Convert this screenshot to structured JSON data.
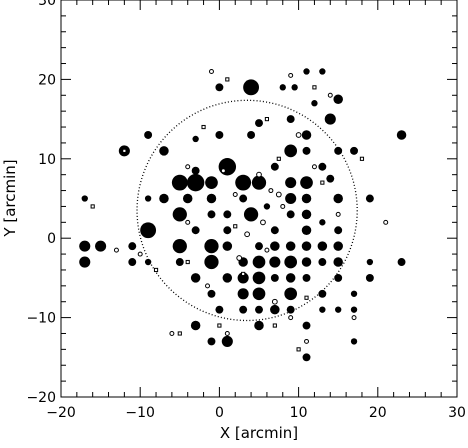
{
  "chart_data": {
    "type": "scatter",
    "title": "",
    "xlabel": "X [arcmin]",
    "ylabel": "Y [arcmin]",
    "xlim": [
      -20,
      30
    ],
    "ylim": [
      -20,
      30
    ],
    "xticks": [
      -20,
      -10,
      0,
      10,
      20,
      30
    ],
    "yticks": [
      -20,
      -10,
      0,
      10,
      20,
      30
    ],
    "grid": false,
    "legend": "none",
    "colors": {
      "background": "#ffffff",
      "axes": "#000000",
      "marker": "#000000"
    },
    "overlays": [
      {
        "type": "circle",
        "style": "dotted",
        "center": [
          3.5,
          3.5
        ],
        "radius": 13.9
      }
    ],
    "series": [
      {
        "marker": "filled-circle",
        "points": [
          [
            4,
            19,
            1.0
          ],
          [
            0,
            19,
            0.5
          ],
          [
            8,
            19,
            0.4
          ],
          [
            9.5,
            19,
            0.4
          ],
          [
            11,
            21,
            0.4
          ],
          [
            13,
            21,
            0.4
          ],
          [
            15,
            17.5,
            0.6
          ],
          [
            12,
            17,
            0.4
          ],
          [
            9,
            15,
            0.5
          ],
          [
            14,
            15,
            0.7
          ],
          [
            5,
            14.5,
            0.5
          ],
          [
            0,
            13,
            0.5
          ],
          [
            4,
            13,
            0.5
          ],
          [
            11,
            13,
            0.6
          ],
          [
            -3,
            12.5,
            0.4
          ],
          [
            -9,
            13,
            0.5
          ],
          [
            23,
            13,
            0.6
          ],
          [
            -12,
            11,
            0.7
          ],
          [
            -7,
            11,
            0.6
          ],
          [
            9,
            11,
            0.8
          ],
          [
            11,
            11,
            0.5
          ],
          [
            15,
            11,
            0.5
          ],
          [
            17,
            11,
            0.5
          ],
          [
            1,
            9,
            1.1
          ],
          [
            -3,
            8.5,
            0.5
          ],
          [
            7,
            9,
            0.5
          ],
          [
            13,
            9,
            0.5
          ],
          [
            -5,
            7,
            1.0
          ],
          [
            -3,
            7,
            1.1
          ],
          [
            -1,
            7,
            0.8
          ],
          [
            3,
            7,
            1.0
          ],
          [
            5,
            7,
            0.9
          ],
          [
            9,
            7,
            0.7
          ],
          [
            11,
            7,
            0.8
          ],
          [
            14,
            7.5,
            0.5
          ],
          [
            -9,
            5,
            0.4
          ],
          [
            -7,
            5,
            0.6
          ],
          [
            -4,
            5,
            0.6
          ],
          [
            -1,
            5,
            0.6
          ],
          [
            3,
            5,
            0.5
          ],
          [
            9,
            5,
            0.7
          ],
          [
            11,
            5,
            0.6
          ],
          [
            15,
            5,
            0.6
          ],
          [
            19,
            5,
            0.5
          ],
          [
            -5,
            3,
            0.9
          ],
          [
            -1,
            3,
            0.5
          ],
          [
            4,
            3,
            0.9
          ],
          [
            9,
            3,
            0.5
          ],
          [
            11,
            3,
            0.6
          ],
          [
            13,
            2,
            0.4
          ],
          [
            -3,
            1,
            0.5
          ],
          [
            1,
            1,
            0.5
          ],
          [
            7,
            1,
            0.5
          ],
          [
            11,
            1,
            0.6
          ],
          [
            15,
            1,
            0.5
          ],
          [
            -9,
            1,
            1.0
          ],
          [
            -5,
            -1,
            0.9
          ],
          [
            -1,
            -1,
            0.9
          ],
          [
            1,
            -1,
            0.6
          ],
          [
            5,
            -1,
            0.5
          ],
          [
            7,
            -1,
            0.6
          ],
          [
            9,
            -1,
            0.6
          ],
          [
            11,
            -1,
            0.6
          ],
          [
            13,
            -1,
            0.6
          ],
          [
            15,
            -1,
            0.6
          ],
          [
            -17,
            -1,
            0.7
          ],
          [
            -15,
            -1,
            0.7
          ],
          [
            -11,
            -1,
            0.5
          ],
          [
            -17,
            -3,
            0.7
          ],
          [
            -11,
            -3,
            0.5
          ],
          [
            -9,
            -3,
            0.4
          ],
          [
            -5,
            -3,
            0.5
          ],
          [
            -1,
            -3,
            0.9
          ],
          [
            3,
            -3,
            0.6
          ],
          [
            5,
            -3,
            0.8
          ],
          [
            7,
            -3,
            0.7
          ],
          [
            9,
            -3,
            0.8
          ],
          [
            11,
            -3,
            0.6
          ],
          [
            13,
            -3,
            0.5
          ],
          [
            15,
            -3,
            0.6
          ],
          [
            19,
            -3,
            0.4
          ],
          [
            -3,
            -5,
            0.6
          ],
          [
            1,
            -5,
            0.6
          ],
          [
            3,
            -5,
            0.7
          ],
          [
            5,
            -5,
            0.8
          ],
          [
            7,
            -5,
            0.5
          ],
          [
            9,
            -5,
            0.6
          ],
          [
            11,
            -5,
            0.5
          ],
          [
            15,
            -5,
            0.5
          ],
          [
            19,
            -5,
            0.5
          ],
          [
            -1,
            -7,
            0.5
          ],
          [
            3,
            -7,
            0.7
          ],
          [
            5,
            -7,
            0.8
          ],
          [
            9,
            -7,
            0.8
          ],
          [
            13,
            -7,
            0.5
          ],
          [
            17,
            -7,
            0.4
          ],
          [
            0,
            -9,
            0.5
          ],
          [
            3,
            -9,
            0.5
          ],
          [
            5,
            -9,
            0.5
          ],
          [
            7,
            -9,
            0.6
          ],
          [
            9,
            -9,
            0.5
          ],
          [
            13,
            -9,
            0.4
          ],
          [
            15,
            -9,
            0.4
          ],
          [
            17,
            -9,
            0.4
          ],
          [
            -3,
            -11,
            0.6
          ],
          [
            5,
            -11,
            0.6
          ],
          [
            11,
            -11,
            0.5
          ],
          [
            -1,
            -13,
            0.5
          ],
          [
            1,
            -13,
            0.7
          ],
          [
            17,
            -13,
            0.4
          ],
          [
            11,
            -15,
            0.5
          ],
          [
            23,
            -3,
            0.5
          ],
          [
            -17,
            5,
            0.4
          ],
          [
            1,
            3,
            0.5
          ],
          [
            6,
            4,
            0.4
          ]
        ]
      },
      {
        "marker": "open-circle",
        "points": [
          [
            -1,
            21,
            0.25
          ],
          [
            9,
            20.5,
            0.25
          ],
          [
            14,
            18,
            0.25
          ],
          [
            10,
            13,
            0.3
          ],
          [
            0.5,
            8.5,
            0.25
          ],
          [
            5,
            8,
            0.3
          ],
          [
            7.5,
            5.5,
            0.3
          ],
          [
            5.5,
            2,
            0.3
          ],
          [
            2,
            5.5,
            0.25
          ],
          [
            3.5,
            0.5,
            0.3
          ],
          [
            6,
            -1.5,
            0.25
          ],
          [
            2.5,
            -2.5,
            0.3
          ],
          [
            -1.5,
            -6,
            0.25
          ],
          [
            7,
            -8,
            0.3
          ],
          [
            9,
            -10,
            0.25
          ],
          [
            1,
            -12,
            0.25
          ],
          [
            12,
            9,
            0.25
          ],
          [
            15,
            3,
            0.25
          ],
          [
            8,
            4,
            0.25
          ],
          [
            6.5,
            6,
            0.25
          ],
          [
            -4,
            2,
            0.25
          ],
          [
            -13,
            -1.5,
            0.25
          ],
          [
            -10,
            -2,
            0.25
          ],
          [
            11,
            -13,
            0.25
          ],
          [
            -6,
            -12,
            0.25
          ],
          [
            21,
            2,
            0.25
          ],
          [
            17,
            -10,
            0.25
          ],
          [
            -4,
            9,
            0.25
          ]
        ]
      },
      {
        "marker": "open-square",
        "points": [
          [
            1,
            20,
            0.2
          ],
          [
            12,
            19,
            0.2
          ],
          [
            6,
            15,
            0.2
          ],
          [
            -2,
            14,
            0.2
          ],
          [
            -12,
            11,
            0.2
          ],
          [
            7.5,
            10,
            0.2
          ],
          [
            13,
            7,
            0.2
          ],
          [
            2,
            1.5,
            0.2
          ],
          [
            -4,
            -3,
            0.2
          ],
          [
            -8,
            -4,
            0.2
          ],
          [
            7,
            -11,
            0.2
          ],
          [
            -5,
            -12,
            0.2
          ],
          [
            10,
            -14,
            0.2
          ],
          [
            -16,
            4,
            0.2
          ],
          [
            18,
            10,
            0.2
          ],
          [
            3,
            -4.5,
            0.2
          ],
          [
            11,
            -7.5,
            0.2
          ],
          [
            0,
            -11,
            0.2
          ]
        ]
      }
    ]
  }
}
